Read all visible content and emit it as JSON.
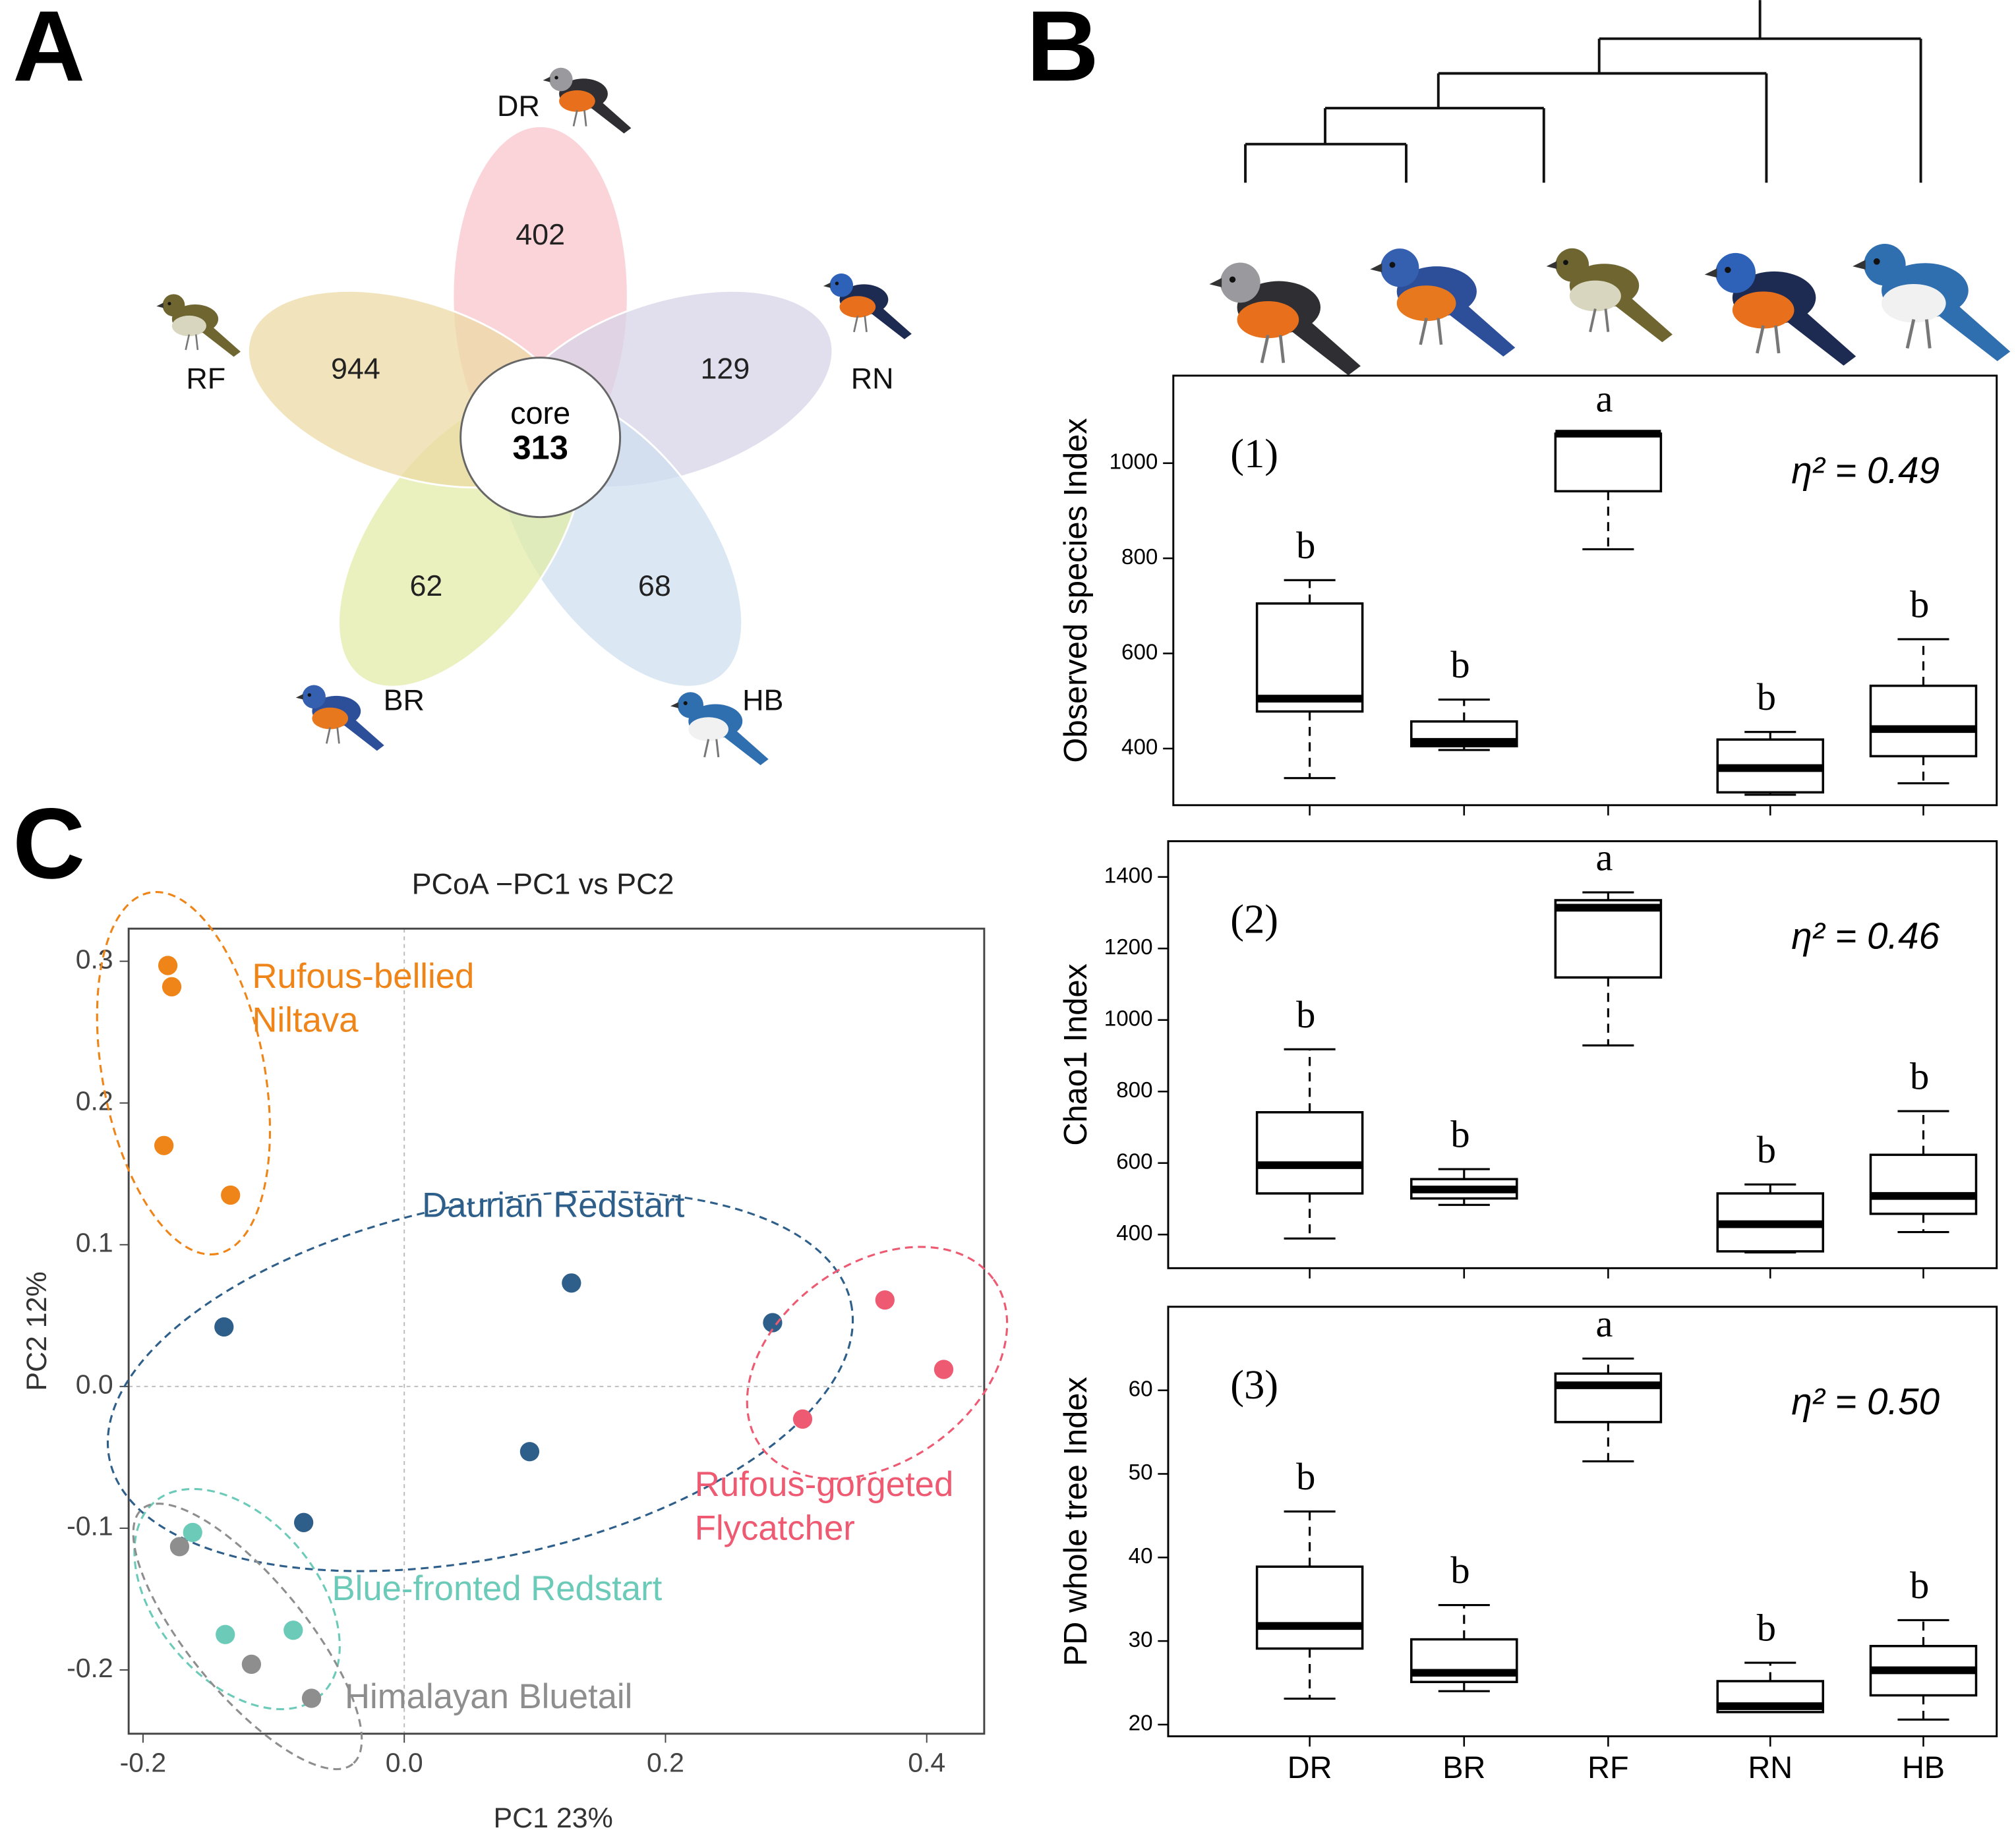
{
  "chart_data": [
    {
      "type": "venn",
      "panel": "A",
      "core_label": "core",
      "core_value": 313,
      "sets": [
        {
          "name": "DR",
          "value": 402,
          "color": "#f9c4cb"
        },
        {
          "name": "RN",
          "value": 129,
          "color": "#d6d3e6"
        },
        {
          "name": "HB",
          "value": 68,
          "color": "#cddff0"
        },
        {
          "name": "BR",
          "value": 62,
          "color": "#e2eba6"
        },
        {
          "name": "RF",
          "value": 944,
          "color": "#ecd9a2"
        }
      ]
    },
    {
      "type": "box",
      "panel": "B",
      "subplot": "(1)",
      "ylabel": "Observed species Index",
      "annotation": "η² = 0.49",
      "ylim": [
        281,
        1184
      ],
      "yticks": [
        400,
        600,
        800,
        1000
      ],
      "boxes": [
        {
          "min": 338,
          "q1": 478,
          "median": 505,
          "q3": 705,
          "max": 754,
          "letter": "b"
        },
        {
          "min": 397,
          "q1": 405,
          "median": 414,
          "q3": 457,
          "max": 503,
          "letter": "b"
        },
        {
          "min": 819,
          "q1": 941,
          "median": 1062,
          "q3": 1062,
          "max": 1062,
          "letter": "a"
        },
        {
          "min": 303,
          "q1": 308,
          "median": 359,
          "q3": 419,
          "max": 435,
          "letter": "b"
        },
        {
          "min": 327,
          "q1": 384,
          "median": 441,
          "q3": 532,
          "max": 630,
          "letter": "b"
        }
      ]
    },
    {
      "type": "box",
      "subplot": "(2)",
      "ylabel": "Chao1 Index",
      "annotation": "η² = 0.46",
      "ylim": [
        306,
        1500
      ],
      "yticks": [
        400,
        600,
        800,
        1000,
        1200,
        1400
      ],
      "boxes": [
        {
          "min": 389,
          "q1": 515,
          "median": 594,
          "q3": 742,
          "max": 918,
          "letter": "b"
        },
        {
          "min": 483,
          "q1": 501,
          "median": 526,
          "q3": 555,
          "max": 583,
          "letter": "b"
        },
        {
          "min": 929,
          "q1": 1119,
          "median": 1314,
          "q3": 1335,
          "max": 1357,
          "letter": "a"
        },
        {
          "min": 350,
          "q1": 353,
          "median": 429,
          "q3": 515,
          "max": 540,
          "letter": "b"
        },
        {
          "min": 407,
          "q1": 458,
          "median": 508,
          "q3": 623,
          "max": 745,
          "letter": "b"
        }
      ]
    },
    {
      "type": "box",
      "subplot": "(3)",
      "ylabel": "PD whole tree Index",
      "annotation": "η² = 0.50",
      "ylim": [
        18.6,
        70
      ],
      "yticks": [
        20,
        30,
        40,
        50,
        60
      ],
      "categories": [
        "DR",
        "BR",
        "RF",
        "RN",
        "HB"
      ],
      "boxes": [
        {
          "min": 23.1,
          "q1": 29.1,
          "median": 31.8,
          "q3": 38.9,
          "max": 45.5,
          "letter": "b"
        },
        {
          "min": 24.0,
          "q1": 25.1,
          "median": 26.2,
          "q3": 30.2,
          "max": 34.3,
          "letter": "b"
        },
        {
          "min": 51.5,
          "q1": 56.2,
          "median": 60.6,
          "q3": 62.0,
          "max": 63.8,
          "letter": "a"
        },
        {
          "min": 21.5,
          "q1": 21.5,
          "median": 22.2,
          "q3": 25.2,
          "max": 27.4,
          "letter": "b"
        },
        {
          "min": 20.6,
          "q1": 23.5,
          "median": 26.5,
          "q3": 29.4,
          "max": 32.5,
          "letter": "b"
        }
      ]
    },
    {
      "type": "scatter",
      "panel": "C",
      "title": "PCoA −PC1 vs PC2",
      "xlabel": "PC1 23%",
      "ylabel": "PC2 12%",
      "xlim": [
        -0.211,
        0.444
      ],
      "ylim": [
        -0.245,
        0.323
      ],
      "xticks": [
        -0.2,
        {
          "value": 0,
          "label": "0.0"
        },
        0.2,
        0.4
      ],
      "yticks": [
        -0.2,
        -0.1,
        {
          "value": 0,
          "label": "0.0"
        },
        0.1,
        0.2,
        0.3
      ],
      "zero_lines": true,
      "series": [
        {
          "name": "Rufous-bellied Niltava",
          "color": "#ef8519",
          "x": [
            -0.181,
            -0.178,
            -0.184,
            -0.133
          ],
          "y": [
            0.297,
            0.282,
            0.17,
            0.135
          ]
        },
        {
          "name": "Daurian Redstart",
          "color": "#2e5f8a",
          "x": [
            -0.138,
            0.128,
            0.282,
            0.096,
            -0.077
          ],
          "y": [
            0.042,
            0.073,
            0.045,
            -0.046,
            -0.096
          ]
        },
        {
          "name": "Rufous-gorgeted Flycatcher",
          "color": "#ee5a72",
          "x": [
            0.368,
            0.413,
            0.305
          ],
          "y": [
            0.061,
            0.012,
            -0.023
          ]
        },
        {
          "name": "Blue-fronted Redstart",
          "color": "#6ccab9",
          "x": [
            -0.162,
            -0.137,
            -0.085
          ],
          "y": [
            -0.103,
            -0.175,
            -0.172
          ]
        },
        {
          "name": "Himalayan Bluetail",
          "color": "#8e8e8e",
          "x": [
            -0.172,
            -0.117,
            -0.071
          ],
          "y": [
            -0.113,
            -0.196,
            -0.22
          ]
        }
      ]
    }
  ]
}
